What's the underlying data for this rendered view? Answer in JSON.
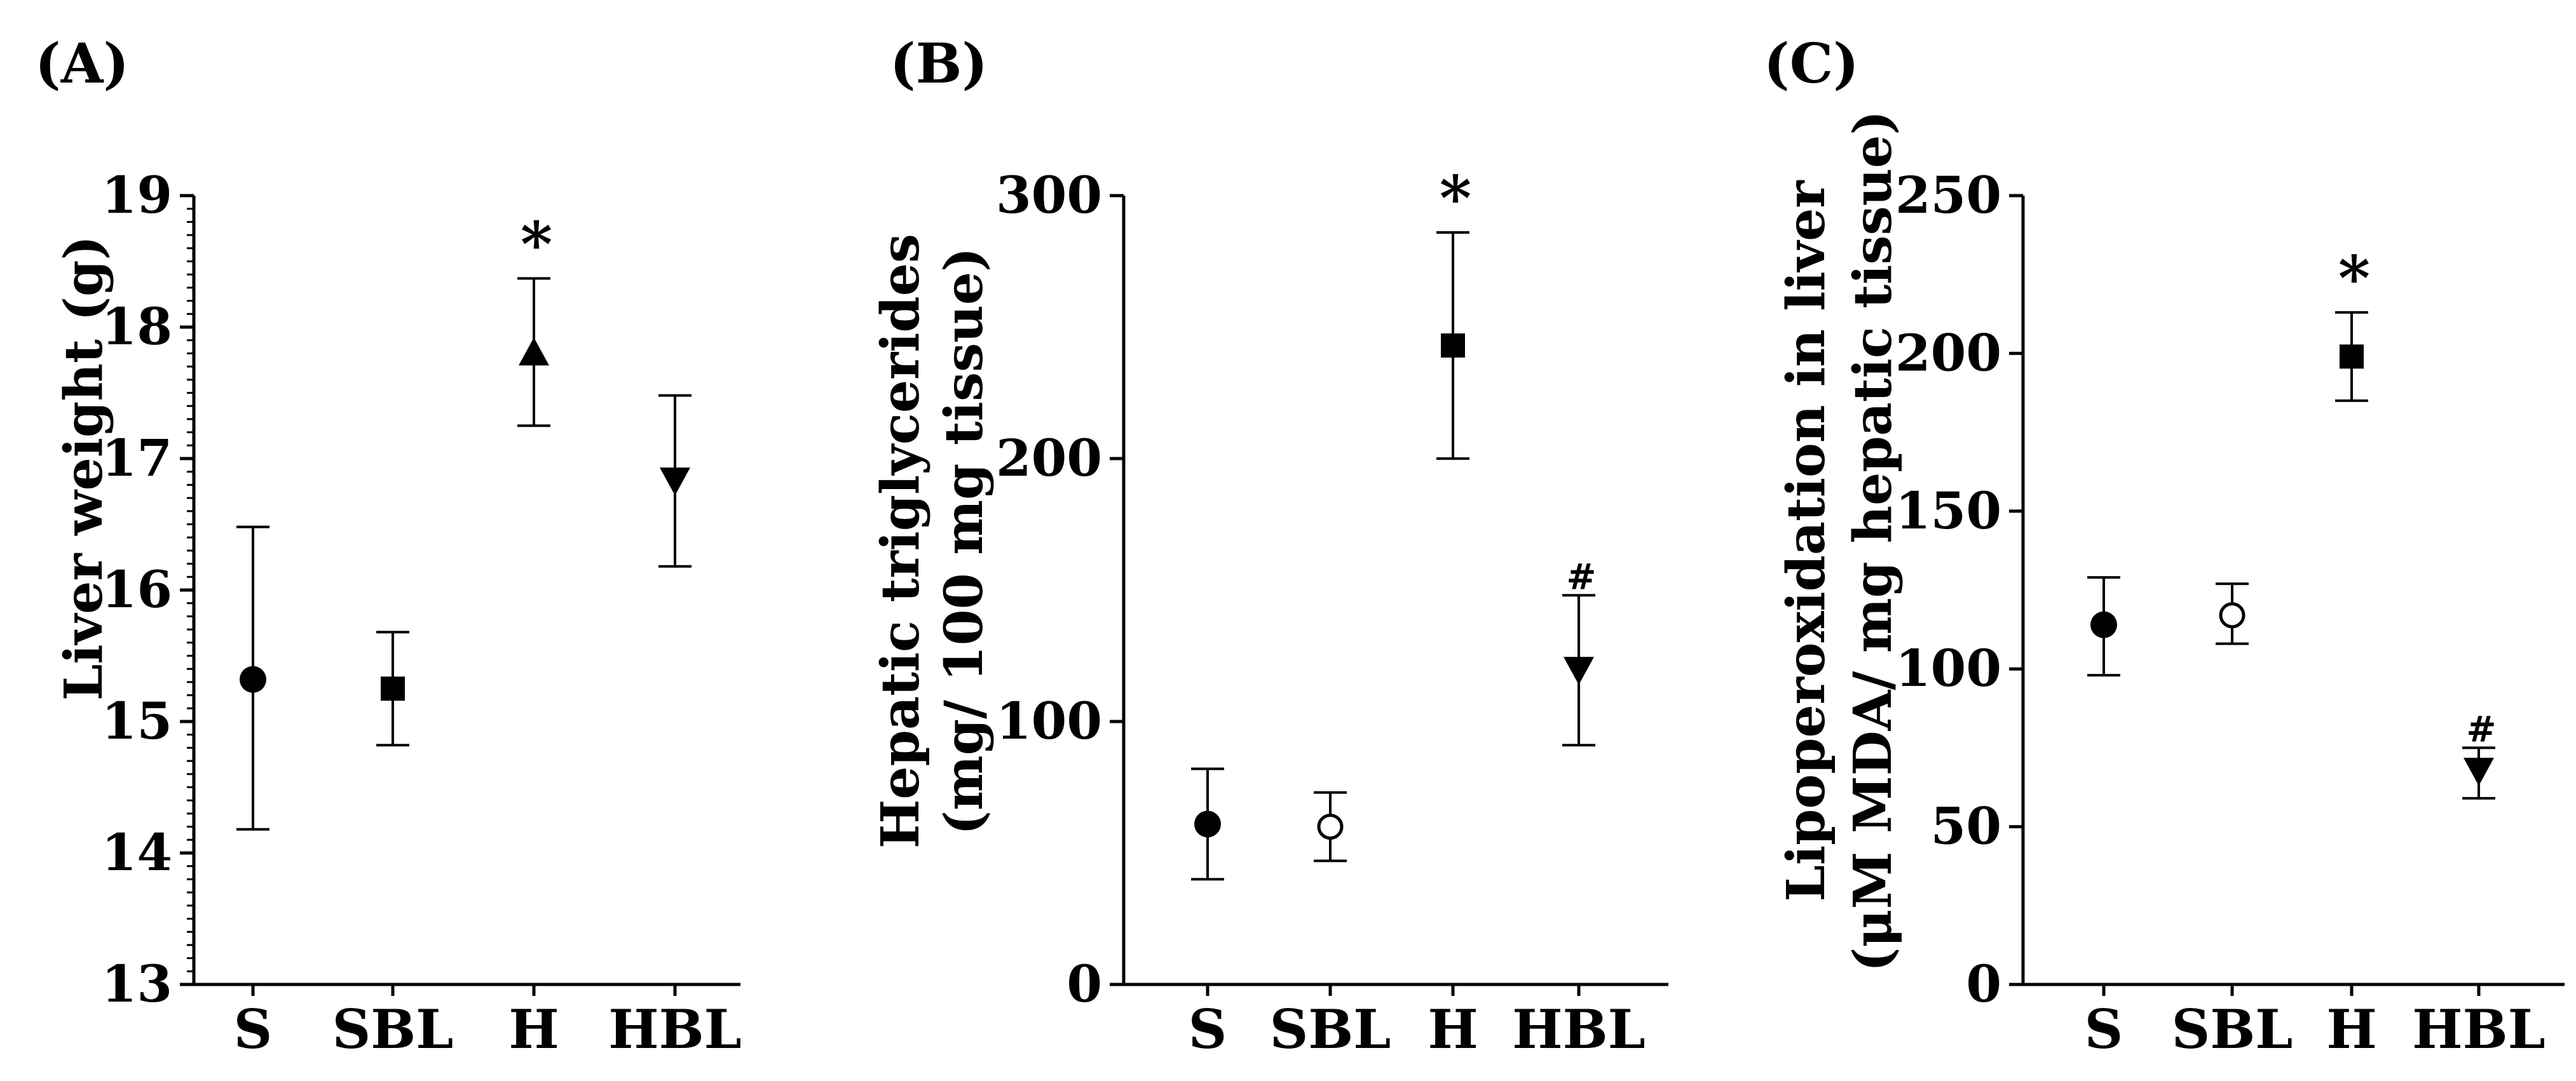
{
  "chart_data": [
    {
      "type": "scatter",
      "panel_label": "(A)",
      "ylabel_lines": [
        "Liver weight (g)"
      ],
      "categories": [
        "S",
        "SBL",
        "H",
        "HBL"
      ],
      "yticks": [
        13,
        14,
        15,
        16,
        17,
        18,
        19
      ],
      "ylim": [
        13,
        19
      ],
      "minor_ticks_per_major": 10,
      "points": [
        {
          "category": "S",
          "mean": 15.32,
          "lower": 14.18,
          "upper": 16.48,
          "marker": "circle-filled",
          "annotation": ""
        },
        {
          "category": "SBL",
          "mean": 15.25,
          "lower": 14.82,
          "upper": 15.68,
          "marker": "square-filled",
          "annotation": ""
        },
        {
          "category": "H",
          "mean": 17.8,
          "lower": 17.25,
          "upper": 18.37,
          "marker": "triangle-up-filled",
          "annotation": "*"
        },
        {
          "category": "HBL",
          "mean": 16.84,
          "lower": 16.18,
          "upper": 17.48,
          "marker": "triangle-down-filled",
          "annotation": ""
        }
      ]
    },
    {
      "type": "scatter",
      "panel_label": "(B)",
      "ylabel_lines": [
        "Hepatic triglycerides",
        "(mg/ 100 mg tissue)"
      ],
      "categories": [
        "S",
        "SBL",
        "H",
        "HBL"
      ],
      "yticks": [
        0,
        100,
        200,
        300
      ],
      "ylim": [
        0,
        300
      ],
      "minor_ticks_per_major": 0,
      "points": [
        {
          "category": "S",
          "mean": 61,
          "lower": 40,
          "upper": 82,
          "marker": "circle-filled",
          "annotation": ""
        },
        {
          "category": "SBL",
          "mean": 60,
          "lower": 47,
          "upper": 73,
          "marker": "circle-open",
          "annotation": ""
        },
        {
          "category": "H",
          "mean": 243,
          "lower": 200,
          "upper": 286,
          "marker": "square-filled",
          "annotation": "*"
        },
        {
          "category": "HBL",
          "mean": 120,
          "lower": 91,
          "upper": 148,
          "marker": "triangle-down-filled",
          "annotation": "#"
        }
      ]
    },
    {
      "type": "scatter",
      "panel_label": "(C)",
      "ylabel_lines": [
        "Lipoperoxidation in liver",
        "(μM MDA/ mg hepatic tissue)"
      ],
      "categories": [
        "S",
        "SBL",
        "H",
        "HBL"
      ],
      "yticks": [
        0,
        50,
        100,
        150,
        200,
        250
      ],
      "ylim": [
        0,
        250
      ],
      "minor_ticks_per_major": 0,
      "points": [
        {
          "category": "S",
          "mean": 114,
          "lower": 98,
          "upper": 129,
          "marker": "circle-filled",
          "annotation": ""
        },
        {
          "category": "SBL",
          "mean": 117,
          "lower": 108,
          "upper": 127,
          "marker": "circle-open",
          "annotation": ""
        },
        {
          "category": "H",
          "mean": 199,
          "lower": 185,
          "upper": 213,
          "marker": "square-filled",
          "annotation": "*"
        },
        {
          "category": "HBL",
          "mean": 68,
          "lower": 59,
          "upper": 75,
          "marker": "triangle-down-filled",
          "annotation": "#"
        }
      ]
    }
  ]
}
